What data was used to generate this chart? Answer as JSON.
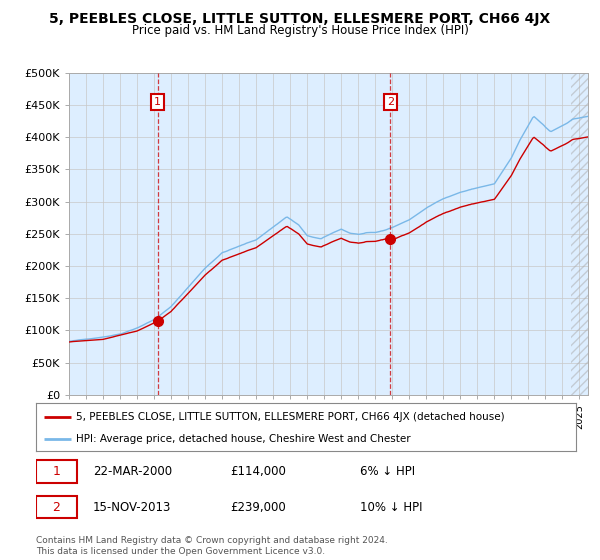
{
  "title": "5, PEEBLES CLOSE, LITTLE SUTTON, ELLESMERE PORT, CH66 4JX",
  "subtitle": "Price paid vs. HM Land Registry's House Price Index (HPI)",
  "ylim": [
    0,
    500000
  ],
  "yticks": [
    0,
    50000,
    100000,
    150000,
    200000,
    250000,
    300000,
    350000,
    400000,
    450000,
    500000
  ],
  "ytick_labels": [
    "£0",
    "£50K",
    "£100K",
    "£150K",
    "£200K",
    "£250K",
    "£300K",
    "£350K",
    "£400K",
    "£450K",
    "£500K"
  ],
  "hpi_color": "#7ab8e8",
  "property_color": "#cc0000",
  "point1_date": "22-MAR-2000",
  "point1_price": 114000,
  "point1_pct": "6%",
  "point2_date": "15-NOV-2013",
  "point2_price": 239000,
  "point2_pct": "10%",
  "legend_property": "5, PEEBLES CLOSE, LITTLE SUTTON, ELLESMERE PORT, CH66 4JX (detached house)",
  "legend_hpi": "HPI: Average price, detached house, Cheshire West and Chester",
  "footnote": "Contains HM Land Registry data © Crown copyright and database right 2024.\nThis data is licensed under the Open Government Licence v3.0.",
  "chart_bg": "#ddeeff",
  "plot_bg": "#ffffff",
  "grid_color": "#c8c8c8",
  "sale1_year": 2000.21,
  "sale2_year": 2013.88,
  "xlim_start": 1995.0,
  "xlim_end": 2025.5
}
